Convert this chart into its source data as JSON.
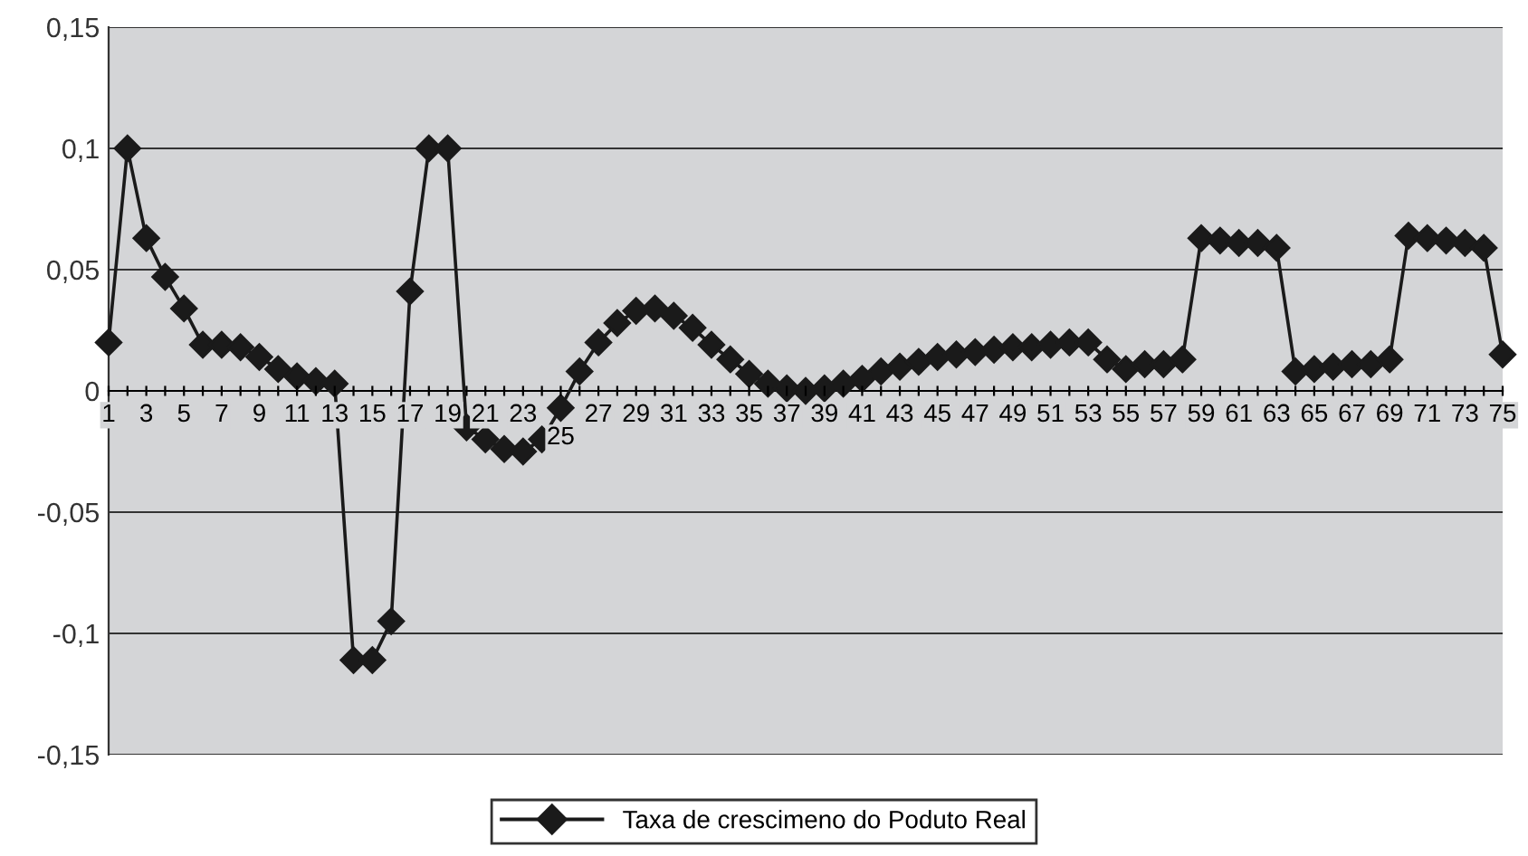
{
  "chart_data": {
    "type": "line",
    "categories": [
      "1",
      null,
      "3",
      null,
      "5",
      null,
      "7",
      null,
      "9",
      null,
      "11",
      null,
      "13",
      null,
      "15",
      null,
      "17",
      null,
      "19",
      null,
      "21",
      null,
      "23",
      null,
      "25",
      null,
      "27",
      null,
      "29",
      null,
      "31",
      null,
      "33",
      null,
      "35",
      null,
      "37",
      null,
      "39",
      null,
      "41",
      null,
      "43",
      null,
      "45",
      null,
      "47",
      null,
      "49",
      null,
      "51",
      null,
      "53",
      null,
      "55",
      null,
      "57",
      null,
      "59",
      null,
      "61",
      null,
      "63",
      null,
      "65",
      null,
      "67",
      null,
      "69",
      null,
      "71",
      null,
      "73",
      null,
      "75"
    ],
    "series": [
      {
        "name": "Taxa de crescimeno do Poduto Real",
        "color": "#1a1a1a",
        "values": [
          0.02,
          0.1,
          0.063,
          0.047,
          0.034,
          0.019,
          0.019,
          0.018,
          0.014,
          0.009,
          0.006,
          0.004,
          0.003,
          -0.111,
          -0.111,
          -0.095,
          0.041,
          0.1,
          0.1,
          -0.015,
          -0.02,
          -0.024,
          -0.025,
          -0.02,
          -0.007,
          0.008,
          0.02,
          0.028,
          0.033,
          0.034,
          0.031,
          0.026,
          0.019,
          0.013,
          0.007,
          0.003,
          0.001,
          0,
          0.001,
          0.003,
          0.005,
          0.008,
          0.01,
          0.012,
          0.014,
          0.015,
          0.016,
          0.017,
          0.018,
          0.018,
          0.019,
          0.02,
          0.02,
          0.013,
          0.009,
          0.011,
          0.011,
          0.013,
          0.063,
          0.062,
          0.061,
          0.061,
          0.059,
          0.008,
          0.009,
          0.01,
          0.011,
          0.011,
          0.013,
          0.064,
          0.063,
          0.062,
          0.061,
          0.059,
          0.015
        ]
      }
    ],
    "ylim": [
      -0.15,
      0.15
    ],
    "yticks": [
      {
        "value": -0.15,
        "label": "-0,15"
      },
      {
        "value": -0.1,
        "label": "-0,1"
      },
      {
        "value": -0.05,
        "label": "-0,05"
      },
      {
        "value": 0,
        "label": "0"
      },
      {
        "value": 0.05,
        "label": "0,05"
      },
      {
        "value": 0.1,
        "label": "0,1"
      },
      {
        "value": 0.15,
        "label": "0,15"
      }
    ],
    "grid": "y",
    "legend": "bottom",
    "marker": "diamond",
    "line_style": "solid"
  }
}
